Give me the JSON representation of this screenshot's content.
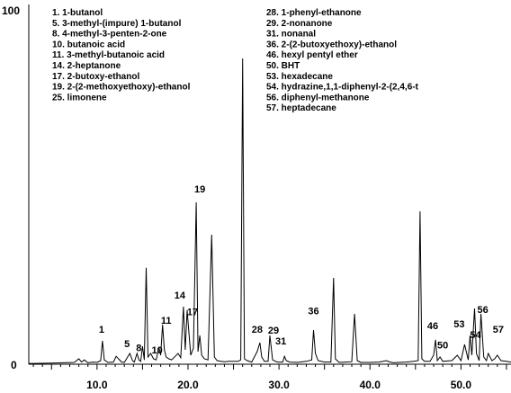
{
  "chart_data": {
    "type": "line",
    "title": "",
    "xlabel": "",
    "ylabel": "",
    "xlim": [
      2.5,
      55.5
    ],
    "ylim": [
      0,
      100
    ],
    "y_ticks": [
      "0",
      "100"
    ],
    "x_ticks": [
      "10.0",
      "20.0",
      "30.0",
      "40.0",
      "50.0"
    ],
    "x_tick_values": [
      10,
      20,
      30,
      40,
      50
    ],
    "grid": false,
    "legend_position": "top-left",
    "color": "#000000",
    "legend": {
      "left_column": [
        "1. 1-butanol",
        "5. 3-methyl-(impure) 1-butanol",
        "8. 4-methyl-3-penten-2-one",
        "10. butanoic acid",
        "11. 3-methyl-butanoic acid",
        "14. 2-heptanone",
        "17. 2-butoxy-ethanol",
        "19. 2-(2-methoxyethoxy)-ethanol",
        "25. limonene"
      ],
      "right_column": [
        "28. 1-phenyl-ethanone",
        "29. 2-nonanone",
        "31. nonanal",
        "36. 2-(2-butoxyethoxy)-ethanol",
        "46. hexyl pentyl ether",
        "50. BHT",
        "53. hexadecane",
        "54. hydrazine,1,1-diphenyl-2-(2,4,6-t",
        "56. diphenyl-methanone",
        "57. heptadecane"
      ]
    },
    "peak_labels": [
      {
        "label": "1",
        "x": 10.5,
        "y": 8.8
      },
      {
        "label": "5",
        "x": 13.3,
        "y": 4.7
      },
      {
        "label": "8",
        "x": 14.6,
        "y": 3.6
      },
      {
        "label": "10",
        "x": 16.6,
        "y": 3.0
      },
      {
        "label": "11",
        "x": 17.6,
        "y": 11.2
      },
      {
        "label": "14",
        "x": 19.1,
        "y": 18.2
      },
      {
        "label": "17",
        "x": 20.5,
        "y": 13.6
      },
      {
        "label": "19",
        "x": 21.3,
        "y": 47.8
      },
      {
        "label": "28",
        "x": 27.6,
        "y": 8.8
      },
      {
        "label": "29",
        "x": 29.4,
        "y": 8.5
      },
      {
        "label": "31",
        "x": 30.2,
        "y": 5.5
      },
      {
        "label": "36",
        "x": 33.8,
        "y": 13.9
      },
      {
        "label": "46",
        "x": 46.9,
        "y": 9.8
      },
      {
        "label": "50",
        "x": 48.0,
        "y": 4.4
      },
      {
        "label": "53",
        "x": 49.8,
        "y": 10.2
      },
      {
        "label": "54",
        "x": 51.6,
        "y": 7.3
      },
      {
        "label": "56",
        "x": 52.4,
        "y": 14.2
      },
      {
        "label": "57",
        "x": 54.1,
        "y": 8.8
      }
    ],
    "series": [
      {
        "x": [
          2.5,
          5.0,
          7.5,
          8.0,
          8.3,
          8.6,
          9.0,
          9.5,
          10.0,
          10.4,
          10.6,
          10.8,
          11.2,
          11.8,
          12.1,
          12.4,
          12.7,
          13.0,
          13.6,
          13.9,
          14.1,
          14.4,
          14.6,
          14.8,
          15.0,
          15.2,
          15.4,
          15.6,
          15.9,
          16.2,
          16.5,
          16.8,
          17.0,
          17.2,
          17.4,
          17.6,
          17.9,
          18.2,
          18.6,
          18.9,
          19.2,
          19.5,
          19.7,
          19.9,
          20.3,
          20.6,
          20.9,
          21.1,
          21.3,
          21.5,
          21.8,
          22.2,
          22.6,
          22.9,
          23.2,
          23.6,
          24.0,
          24.5,
          25.0,
          25.5,
          25.8,
          26.0,
          26.2,
          26.5,
          27.0,
          27.6,
          27.9,
          28.1,
          28.4,
          28.8,
          29.0,
          29.3,
          29.8,
          30.4,
          30.6,
          30.8,
          31.2,
          32.0,
          33.0,
          33.6,
          33.8,
          34.0,
          34.3,
          35.0,
          35.7,
          36.0,
          36.2,
          36.6,
          37.3,
          38.0,
          38.3,
          38.6,
          39.0,
          40.0,
          41.0,
          41.8,
          42.2,
          42.6,
          43.2,
          44.0,
          44.8,
          45.3,
          45.5,
          45.7,
          46.0,
          46.6,
          47.0,
          47.2,
          47.4,
          47.7,
          48.0,
          48.5,
          49.0,
          49.6,
          50.0,
          50.4,
          50.8,
          51.0,
          51.2,
          51.5,
          51.7,
          52.0,
          52.2,
          52.5,
          52.8,
          53.0,
          53.4,
          53.7,
          54.0,
          54.4,
          55.0,
          55.5
        ],
        "y": [
          0.2,
          0.3,
          0.5,
          1.5,
          0.6,
          1.2,
          0.4,
          0.6,
          0.5,
          1.0,
          6.5,
          1.2,
          0.5,
          0.6,
          2.2,
          1.4,
          0.6,
          0.5,
          3.0,
          1.0,
          0.6,
          3.0,
          1.2,
          0.8,
          5.0,
          1.2,
          26.8,
          2.0,
          3.0,
          1.5,
          1.2,
          4.8,
          2.5,
          11.0,
          4.0,
          2.0,
          1.5,
          1.2,
          2.2,
          3.0,
          1.8,
          16.0,
          4.0,
          15.0,
          2.5,
          4.5,
          45.0,
          3.5,
          8.0,
          2.5,
          1.5,
          1.2,
          36.0,
          2.0,
          1.0,
          0.8,
          0.7,
          0.8,
          0.8,
          0.8,
          1.2,
          85.0,
          1.5,
          1.0,
          0.6,
          3.5,
          6.0,
          2.0,
          0.8,
          0.8,
          8.0,
          1.2,
          0.6,
          0.6,
          2.2,
          1.0,
          0.6,
          0.5,
          0.8,
          1.2,
          9.5,
          3.0,
          1.0,
          0.6,
          0.6,
          24.0,
          1.5,
          0.5,
          0.6,
          0.7,
          14.0,
          1.0,
          0.5,
          0.5,
          0.6,
          1.0,
          0.6,
          0.4,
          0.5,
          0.6,
          0.8,
          1.0,
          42.5,
          1.5,
          0.8,
          0.8,
          2.5,
          6.8,
          1.0,
          2.0,
          0.8,
          0.9,
          1.0,
          2.5,
          1.0,
          5.5,
          1.2,
          8.0,
          2.5,
          15.5,
          3.0,
          1.0,
          14.0,
          2.0,
          1.0,
          3.0,
          1.0,
          1.5,
          2.5,
          1.0,
          0.8,
          0.6
        ]
      }
    ]
  }
}
